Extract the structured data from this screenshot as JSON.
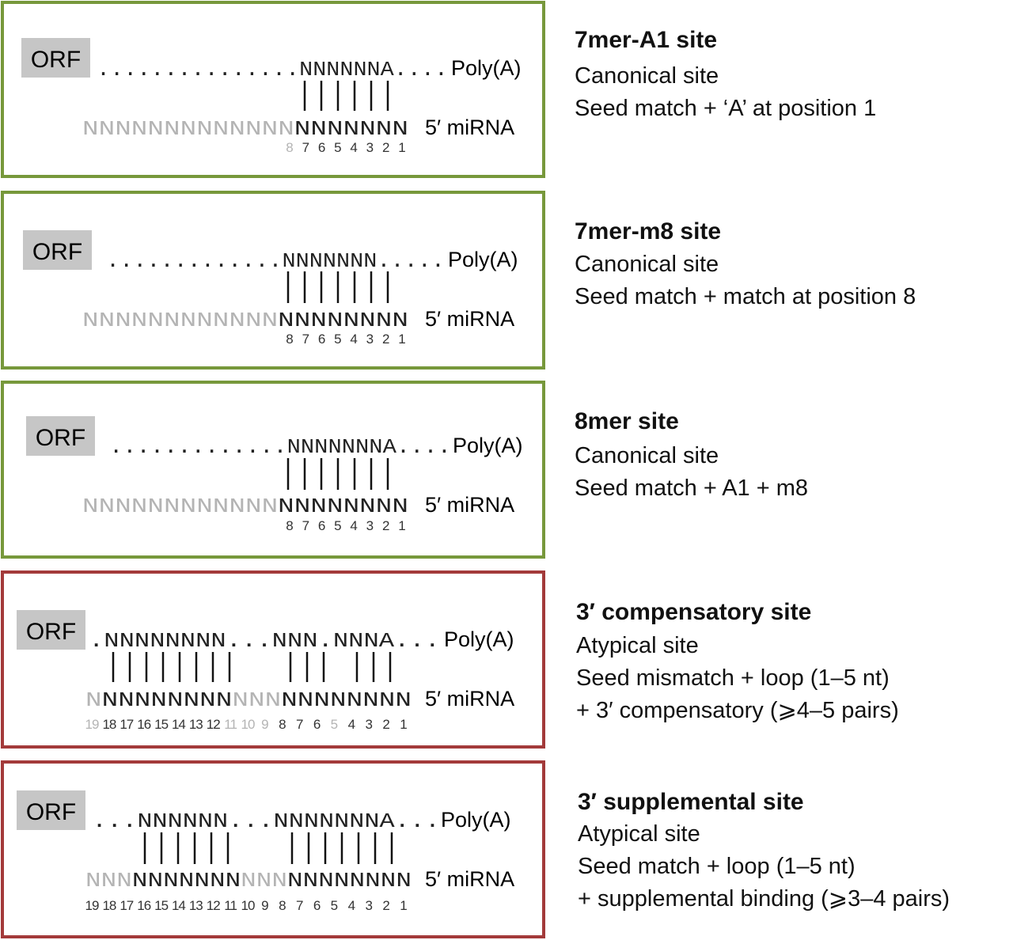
{
  "colors": {
    "canonical": "#77983b",
    "atypical": "#a33a3a",
    "orf_fill": "#c6c6c6",
    "seed_text": "#222222",
    "faded_text": "#b4b4b4"
  },
  "common": {
    "orf": "ORF",
    "polya": "Poly(A)",
    "mirna": "5′ miRNA"
  },
  "panels": [
    {
      "kind": "canonical",
      "title": "7mer-A1 site",
      "lines": [
        "Canonical site",
        "Seed match + ‘A’ at position 1"
      ],
      "mrna": {
        "lead": "...............",
        "seq": "NNNNNNA",
        "tail": "...."
      },
      "mirna_faded": "NNNNNNNNNNNNN",
      "mirna_dark": "NNNNNNN",
      "positions": [
        {
          "t": "8",
          "faded": true
        },
        {
          "t": "7"
        },
        {
          "t": "6"
        },
        {
          "t": "5"
        },
        {
          "t": "4"
        },
        {
          "t": "3"
        },
        {
          "t": "2"
        },
        {
          "t": "1"
        }
      ]
    },
    {
      "kind": "canonical",
      "title": "7mer-m8 site",
      "lines": [
        "Canonical site",
        "Seed match + match at position 8"
      ],
      "mrna": {
        "lead": ".............",
        "seq": "NNNNNNN",
        "tail": "....."
      },
      "mirna_faded": "NNNNNNNNNNNN",
      "mirna_dark": "NNNNNNNN",
      "positions": [
        {
          "t": "8"
        },
        {
          "t": "7"
        },
        {
          "t": "6"
        },
        {
          "t": "5"
        },
        {
          "t": "4"
        },
        {
          "t": "3"
        },
        {
          "t": "2"
        },
        {
          "t": "1"
        }
      ]
    },
    {
      "kind": "canonical",
      "title": "8mer site",
      "lines": [
        "Canonical site",
        "Seed match + A1 + m8"
      ],
      "mrna": {
        "lead": ".............",
        "seq": "NNNNNNNA",
        "tail": "...."
      },
      "mirna_faded": "NNNNNNNNNNNN",
      "mirna_dark": "NNNNNNNN",
      "positions": [
        {
          "t": "8"
        },
        {
          "t": "7"
        },
        {
          "t": "6"
        },
        {
          "t": "5"
        },
        {
          "t": "4"
        },
        {
          "t": "3"
        },
        {
          "t": "2"
        },
        {
          "t": "1"
        }
      ]
    },
    {
      "kind": "atypical",
      "title": "3′ compensatory site",
      "lines": [
        "Atypical site",
        "Seed mismatch + loop (1–5 nt)",
        "+ 3′ compensatory (⩾4–5 pairs)"
      ],
      "mrna_parts": [
        ".",
        "NNNNNNNN",
        "...",
        "NNN",
        ".",
        "NNNA",
        "..."
      ],
      "mirna_parts": [
        {
          "t": "N",
          "faded": true
        },
        {
          "t": "NNNNNNNN"
        },
        {
          "t": "NNN",
          "faded": true
        },
        {
          "t": "NNNNNNNN"
        }
      ],
      "positions": [
        {
          "t": "19",
          "faded": true
        },
        {
          "t": "18"
        },
        {
          "t": "17"
        },
        {
          "t": "16"
        },
        {
          "t": "15"
        },
        {
          "t": "14"
        },
        {
          "t": "13"
        },
        {
          "t": "12"
        },
        {
          "t": "11",
          "faded": true
        },
        {
          "t": "10",
          "faded": true
        },
        {
          "t": "9",
          "faded": true
        },
        {
          "t": "8"
        },
        {
          "t": "7"
        },
        {
          "t": "6"
        },
        {
          "t": "5",
          "faded": true
        },
        {
          "t": "4"
        },
        {
          "t": "3"
        },
        {
          "t": "2"
        },
        {
          "t": "1"
        }
      ]
    },
    {
      "kind": "atypical",
      "title": "3′ supplemental site",
      "lines": [
        "Atypical site",
        "Seed match + loop (1–5 nt)",
        "+ supplemental binding (⩾3–4 pairs)"
      ],
      "mrna_parts": [
        "...",
        "NNNNNN",
        "...",
        "NNNNNNNA",
        "..."
      ],
      "mirna_parts": [
        {
          "t": "NNN",
          "faded": true
        },
        {
          "t": "NNNNNNN"
        },
        {
          "t": "NNN",
          "faded": true
        },
        {
          "t": "NNNNNNNN"
        }
      ],
      "positions": [
        {
          "t": "19"
        },
        {
          "t": "18"
        },
        {
          "t": "17"
        },
        {
          "t": "16"
        },
        {
          "t": "15"
        },
        {
          "t": "14"
        },
        {
          "t": "13"
        },
        {
          "t": "12"
        },
        {
          "t": "11"
        },
        {
          "t": "10"
        },
        {
          "t": "9"
        },
        {
          "t": "8"
        },
        {
          "t": "7"
        },
        {
          "t": "6"
        },
        {
          "t": "5"
        },
        {
          "t": "4"
        },
        {
          "t": "3"
        },
        {
          "t": "2"
        },
        {
          "t": "1"
        }
      ]
    }
  ]
}
